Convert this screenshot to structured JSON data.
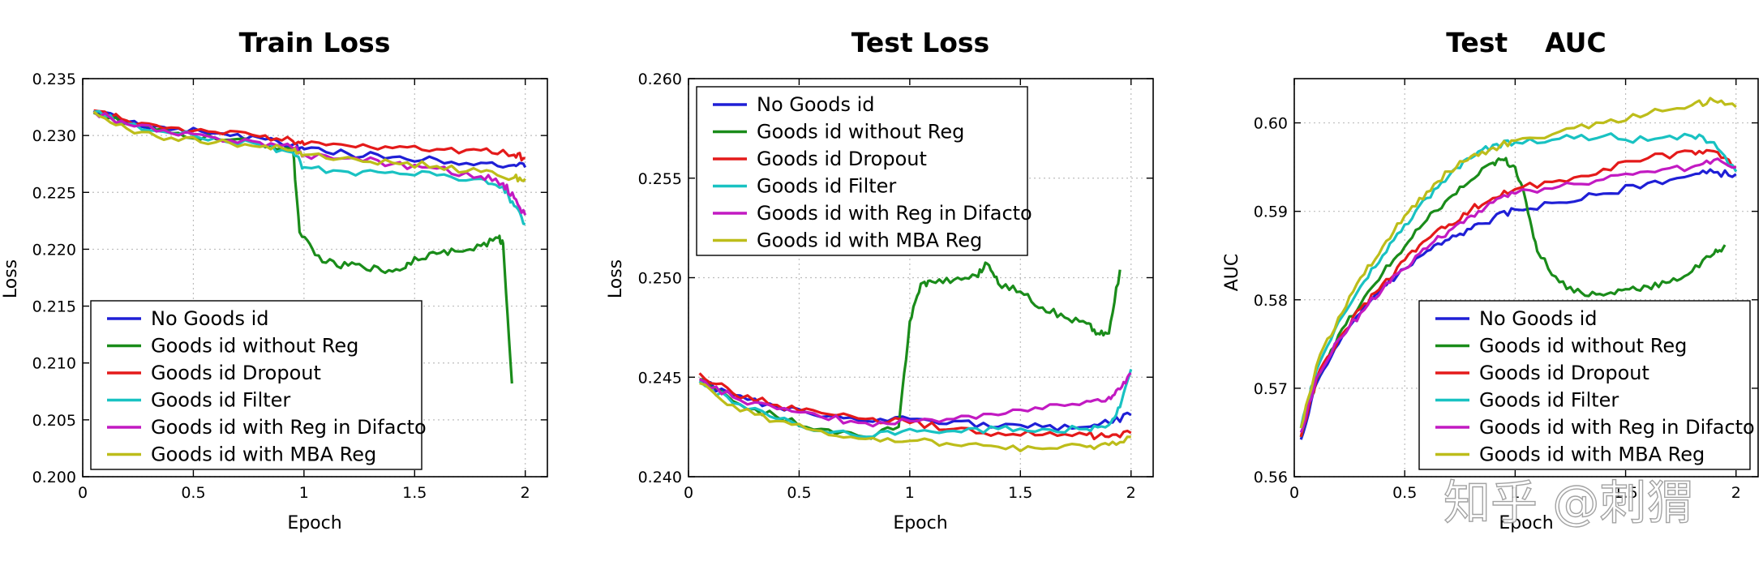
{
  "watermark": "知乎 @刺猬",
  "chart_data": [
    {
      "type": "line",
      "title": "Train Loss",
      "xlabel": "Epoch",
      "ylabel": "Loss",
      "xlim": [
        0,
        2.1
      ],
      "ylim": [
        0.2,
        0.235
      ],
      "xticks": [
        0,
        0.5,
        1,
        1.5,
        2
      ],
      "yticks": [
        0.2,
        0.205,
        0.21,
        0.215,
        0.22,
        0.225,
        0.23,
        0.235
      ],
      "xtick_labels": [
        "0",
        "0.5",
        "1",
        "1.5",
        "2"
      ],
      "ytick_labels": [
        "0.200",
        "0.205",
        "0.210",
        "0.215",
        "0.220",
        "0.225",
        "0.230",
        "0.235"
      ],
      "grid": true,
      "legend_position": "lower-left",
      "series": [
        {
          "name": "No Goods id",
          "color": "#1f1fd6",
          "x": [
            0.05,
            0.2,
            0.4,
            0.6,
            0.8,
            0.95,
            1.0,
            1.2,
            1.4,
            1.6,
            1.8,
            1.95,
            2.0
          ],
          "values": [
            0.2322,
            0.2312,
            0.2305,
            0.2302,
            0.2298,
            0.2292,
            0.2288,
            0.2284,
            0.2281,
            0.2279,
            0.2276,
            0.2274,
            0.2272
          ]
        },
        {
          "name": "Goods id without Reg",
          "color": "#1a8c1a",
          "x": [
            0.05,
            0.2,
            0.4,
            0.6,
            0.8,
            0.95,
            0.98,
            1.05,
            1.15,
            1.25,
            1.35,
            1.45,
            1.5,
            1.6,
            1.7,
            1.8,
            1.88,
            1.9,
            1.94
          ],
          "values": [
            0.232,
            0.231,
            0.2302,
            0.2297,
            0.2293,
            0.2288,
            0.2215,
            0.2195,
            0.2185,
            0.2187,
            0.2181,
            0.2183,
            0.2193,
            0.2196,
            0.2198,
            0.2203,
            0.221,
            0.2205,
            0.2082
          ]
        },
        {
          "name": "Goods id Dropout",
          "color": "#e41a1a",
          "x": [
            0.05,
            0.2,
            0.4,
            0.6,
            0.8,
            0.95,
            1.0,
            1.2,
            1.4,
            1.6,
            1.8,
            1.95,
            2.0
          ],
          "values": [
            0.2322,
            0.2313,
            0.2307,
            0.2303,
            0.2299,
            0.2295,
            0.2292,
            0.2291,
            0.2289,
            0.2288,
            0.2287,
            0.2283,
            0.228
          ]
        },
        {
          "name": "Goods id Filter",
          "color": "#19c2c2",
          "x": [
            0.05,
            0.2,
            0.4,
            0.6,
            0.8,
            0.95,
            1.0,
            1.2,
            1.4,
            1.6,
            1.8,
            1.9,
            1.95,
            2.0
          ],
          "values": [
            0.2321,
            0.231,
            0.2302,
            0.2298,
            0.2292,
            0.2285,
            0.2272,
            0.2268,
            0.2268,
            0.2265,
            0.2262,
            0.2255,
            0.2238,
            0.2222
          ]
        },
        {
          "name": "Goods id with Reg in Difacto",
          "color": "#c21ac2",
          "x": [
            0.05,
            0.2,
            0.4,
            0.6,
            0.8,
            0.95,
            1.0,
            1.2,
            1.4,
            1.6,
            1.8,
            1.9,
            1.95,
            2.0
          ],
          "values": [
            0.2321,
            0.231,
            0.2302,
            0.2298,
            0.2294,
            0.2289,
            0.2283,
            0.228,
            0.2275,
            0.2271,
            0.2264,
            0.2258,
            0.2245,
            0.223
          ]
        },
        {
          "name": "Goods id with MBA Reg",
          "color": "#bdbd1a",
          "x": [
            0.05,
            0.2,
            0.4,
            0.6,
            0.8,
            0.95,
            1.0,
            1.2,
            1.4,
            1.6,
            1.8,
            1.95,
            2.0
          ],
          "values": [
            0.2321,
            0.2306,
            0.2298,
            0.2294,
            0.229,
            0.2287,
            0.2283,
            0.2281,
            0.2276,
            0.2273,
            0.2268,
            0.2263,
            0.2262
          ]
        }
      ]
    },
    {
      "type": "line",
      "title": "Test Loss",
      "xlabel": "Epoch",
      "ylabel": "Loss",
      "xlim": [
        0,
        2.1
      ],
      "ylim": [
        0.24,
        0.26
      ],
      "xticks": [
        0,
        0.5,
        1,
        1.5,
        2
      ],
      "yticks": [
        0.24,
        0.245,
        0.25,
        0.255,
        0.26
      ],
      "xtick_labels": [
        "0",
        "0.5",
        "1",
        "1.5",
        "2"
      ],
      "ytick_labels": [
        "0.240",
        "0.245",
        "0.250",
        "0.255",
        "0.260"
      ],
      "grid": true,
      "legend_position": "upper-left",
      "series": [
        {
          "name": "No Goods id",
          "color": "#1f1fd6",
          "x": [
            0.05,
            0.2,
            0.4,
            0.6,
            0.8,
            1.0,
            1.2,
            1.4,
            1.6,
            1.8,
            1.9,
            2.0
          ],
          "values": [
            0.2448,
            0.2441,
            0.2435,
            0.243,
            0.2428,
            0.2429,
            0.2428,
            0.2425,
            0.2425,
            0.2425,
            0.2427,
            0.2431
          ]
        },
        {
          "name": "Goods id without Reg",
          "color": "#1a8c1a",
          "x": [
            0.05,
            0.2,
            0.4,
            0.6,
            0.8,
            0.95,
            1.0,
            1.05,
            1.1,
            1.2,
            1.3,
            1.35,
            1.4,
            1.5,
            1.6,
            1.7,
            1.8,
            1.85,
            1.9,
            1.95
          ],
          "values": [
            0.2449,
            0.2438,
            0.243,
            0.2424,
            0.242,
            0.2425,
            0.2478,
            0.2497,
            0.2498,
            0.2499,
            0.2501,
            0.2507,
            0.2497,
            0.2493,
            0.2485,
            0.248,
            0.2477,
            0.2472,
            0.2472,
            0.2504
          ]
        },
        {
          "name": "Goods id Dropout",
          "color": "#e41a1a",
          "x": [
            0.05,
            0.2,
            0.4,
            0.6,
            0.8,
            1.0,
            1.2,
            1.4,
            1.6,
            1.8,
            1.9,
            2.0
          ],
          "values": [
            0.2452,
            0.2442,
            0.2436,
            0.2432,
            0.2429,
            0.2427,
            0.2424,
            0.2422,
            0.2421,
            0.2421,
            0.242,
            0.2422
          ]
        },
        {
          "name": "Goods id Filter",
          "color": "#19c2c2",
          "x": [
            0.05,
            0.2,
            0.4,
            0.6,
            0.8,
            1.0,
            1.2,
            1.4,
            1.6,
            1.8,
            1.9,
            1.95,
            2.0
          ],
          "values": [
            0.2448,
            0.2437,
            0.2429,
            0.2423,
            0.242,
            0.2424,
            0.2423,
            0.2424,
            0.2424,
            0.2424,
            0.2426,
            0.2435,
            0.2454
          ]
        },
        {
          "name": "Goods id with Reg in Difacto",
          "color": "#c21ac2",
          "x": [
            0.05,
            0.2,
            0.4,
            0.6,
            0.8,
            1.0,
            1.2,
            1.4,
            1.6,
            1.8,
            1.9,
            1.95,
            2.0
          ],
          "values": [
            0.2449,
            0.244,
            0.2434,
            0.243,
            0.2427,
            0.2428,
            0.2429,
            0.2431,
            0.2434,
            0.2438,
            0.244,
            0.2444,
            0.2452
          ]
        },
        {
          "name": "Goods id with MBA Reg",
          "color": "#bdbd1a",
          "x": [
            0.05,
            0.2,
            0.4,
            0.6,
            0.8,
            1.0,
            1.2,
            1.4,
            1.6,
            1.8,
            1.9,
            2.0
          ],
          "values": [
            0.2447,
            0.2436,
            0.2428,
            0.2423,
            0.2419,
            0.2418,
            0.2416,
            0.2415,
            0.2414,
            0.2415,
            0.2416,
            0.242
          ]
        }
      ]
    },
    {
      "type": "line",
      "title": "Test    AUC",
      "xlabel": "Epoch",
      "ylabel": "AUC",
      "xlim": [
        0,
        2.1
      ],
      "ylim": [
        0.56,
        0.605
      ],
      "xticks": [
        0,
        0.5,
        1,
        1.5,
        2
      ],
      "yticks": [
        0.56,
        0.57,
        0.58,
        0.59,
        0.6
      ],
      "xtick_labels": [
        "0",
        "0.5",
        "1",
        "1.5",
        "2"
      ],
      "ytick_labels": [
        "0.56",
        "0.57",
        "0.58",
        "0.59",
        "0.60"
      ],
      "grid": true,
      "legend_position": "lower-right",
      "series": [
        {
          "name": "No Goods id",
          "color": "#1f1fd6",
          "x": [
            0.03,
            0.1,
            0.2,
            0.3,
            0.4,
            0.5,
            0.6,
            0.7,
            0.8,
            0.9,
            1.0,
            1.2,
            1.4,
            1.6,
            1.8,
            1.9,
            2.0
          ],
          "values": [
            0.5642,
            0.5705,
            0.575,
            0.5785,
            0.5815,
            0.5835,
            0.5855,
            0.5868,
            0.588,
            0.5892,
            0.5902,
            0.591,
            0.592,
            0.5932,
            0.5941,
            0.5944,
            0.5942
          ]
        },
        {
          "name": "Goods id without Reg",
          "color": "#1a8c1a",
          "x": [
            0.03,
            0.1,
            0.2,
            0.3,
            0.4,
            0.5,
            0.6,
            0.7,
            0.8,
            0.9,
            0.95,
            1.0,
            1.05,
            1.1,
            1.2,
            1.3,
            1.4,
            1.5,
            1.6,
            1.7,
            1.8,
            1.9,
            1.95
          ],
          "values": [
            0.5645,
            0.571,
            0.576,
            0.5795,
            0.583,
            0.586,
            0.589,
            0.5915,
            0.5935,
            0.5955,
            0.5958,
            0.595,
            0.591,
            0.5855,
            0.582,
            0.5808,
            0.5805,
            0.5812,
            0.5815,
            0.582,
            0.5832,
            0.5852,
            0.5862
          ]
        },
        {
          "name": "Goods id Dropout",
          "color": "#e41a1a",
          "x": [
            0.03,
            0.1,
            0.2,
            0.3,
            0.4,
            0.5,
            0.6,
            0.7,
            0.8,
            0.9,
            1.0,
            1.2,
            1.4,
            1.6,
            1.8,
            1.9,
            2.0
          ],
          "values": [
            0.5645,
            0.571,
            0.5755,
            0.579,
            0.5818,
            0.5845,
            0.5868,
            0.5885,
            0.5902,
            0.5915,
            0.5925,
            0.5935,
            0.5948,
            0.596,
            0.5968,
            0.5968,
            0.595
          ]
        },
        {
          "name": "Goods id Filter",
          "color": "#19c2c2",
          "x": [
            0.03,
            0.1,
            0.2,
            0.3,
            0.4,
            0.5,
            0.6,
            0.7,
            0.8,
            0.9,
            1.0,
            1.2,
            1.4,
            1.6,
            1.8,
            1.9,
            2.0
          ],
          "values": [
            0.5655,
            0.572,
            0.5775,
            0.5815,
            0.585,
            0.5885,
            0.5915,
            0.594,
            0.596,
            0.5975,
            0.5978,
            0.5982,
            0.5985,
            0.598,
            0.5985,
            0.5978,
            0.5945
          ]
        },
        {
          "name": "Goods id with Reg in Difacto",
          "color": "#c21ac2",
          "x": [
            0.03,
            0.1,
            0.2,
            0.3,
            0.4,
            0.5,
            0.6,
            0.7,
            0.8,
            0.9,
            1.0,
            1.2,
            1.4,
            1.6,
            1.8,
            1.9,
            2.0
          ],
          "values": [
            0.565,
            0.5712,
            0.5755,
            0.5785,
            0.5812,
            0.5835,
            0.5858,
            0.5878,
            0.5895,
            0.591,
            0.592,
            0.5928,
            0.5936,
            0.5945,
            0.595,
            0.5958,
            0.595
          ]
        },
        {
          "name": "Goods id with MBA Reg",
          "color": "#bdbd1a",
          "x": [
            0.03,
            0.1,
            0.2,
            0.3,
            0.4,
            0.5,
            0.6,
            0.7,
            0.8,
            0.9,
            1.0,
            1.2,
            1.4,
            1.6,
            1.8,
            1.9,
            2.0
          ],
          "values": [
            0.5655,
            0.5725,
            0.578,
            0.5825,
            0.586,
            0.5895,
            0.5922,
            0.5945,
            0.5962,
            0.5972,
            0.598,
            0.599,
            0.6,
            0.601,
            0.602,
            0.6025,
            0.6018
          ]
        }
      ]
    }
  ]
}
